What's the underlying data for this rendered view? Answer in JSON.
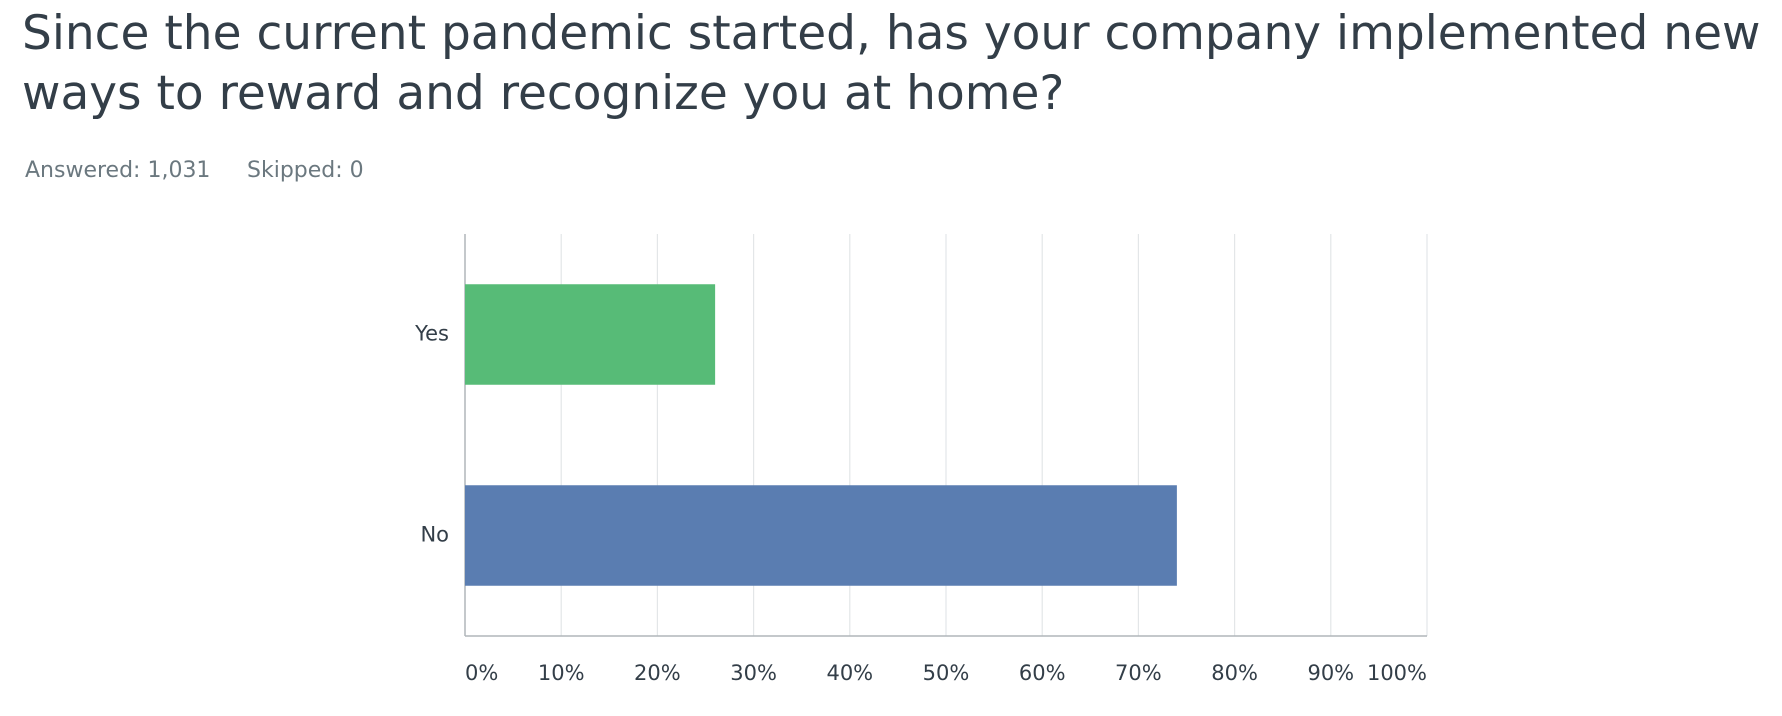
{
  "chart_data": {
    "type": "barh",
    "title": "Since the current pandemic started, has your company implemented new ways to reward and recognize you at home?",
    "answered": "Answered: 1,031",
    "skipped": "Skipped: 0",
    "categories": [
      "Yes",
      "No"
    ],
    "values": [
      26,
      74
    ],
    "colors": [
      "#57bb77",
      "#5a7db1"
    ],
    "xlim": [
      0,
      100
    ],
    "xticks": [
      {
        "value": 0,
        "label": "0%"
      },
      {
        "value": 10,
        "label": "10%"
      },
      {
        "value": 20,
        "label": "20%"
      },
      {
        "value": 30,
        "label": "30%"
      },
      {
        "value": 40,
        "label": "40%"
      },
      {
        "value": 50,
        "label": "50%"
      },
      {
        "value": 60,
        "label": "60%"
      },
      {
        "value": 70,
        "label": "70%"
      },
      {
        "value": 80,
        "label": "80%"
      },
      {
        "value": 90,
        "label": "90%"
      },
      {
        "value": 100,
        "label": "100%"
      }
    ],
    "grid": true
  }
}
